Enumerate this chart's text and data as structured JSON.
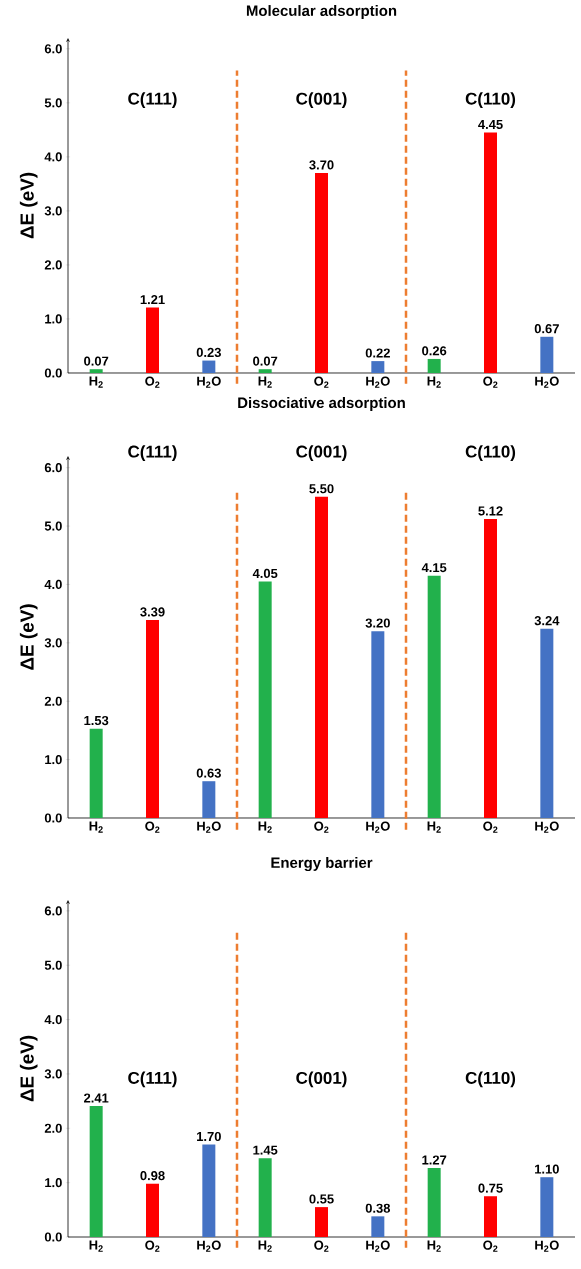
{
  "chart_data": [
    {
      "type": "bar",
      "title": "Molecular adsorption",
      "ylabel": "ΔE (eV)",
      "categories": [
        "H$_{2}$",
        "O$_{2}$",
        "H$_{2}$O",
        "H$_{2}$",
        "O$_{2}$",
        "H$_{2}$O",
        "H$_{2}$",
        "O$_{2}$",
        "H$_{2}$O"
      ],
      "values": [
        0.07,
        1.21,
        0.23,
        0.07,
        3.7,
        0.22,
        0.26,
        4.45,
        0.67
      ],
      "value_labels": [
        "0.07",
        "1.21",
        "0.23",
        "0.07",
        "3.70",
        "0.22",
        "0.26",
        "4.45",
        "0.67"
      ],
      "colors": [
        "#22b14c",
        "#ff0000",
        "#4472c4",
        "#22b14c",
        "#ff0000",
        "#4472c4",
        "#22b14c",
        "#ff0000",
        "#4472c4"
      ],
      "ylim": [
        0,
        6.2
      ],
      "yticks": [
        {
          "value": 0,
          "label": "0.0"
        },
        {
          "value": 1,
          "label": "1.0"
        },
        {
          "value": 2,
          "label": "2.0"
        },
        {
          "value": 3,
          "label": "3.0"
        },
        {
          "value": 4,
          "label": "4.0"
        },
        {
          "value": 5,
          "label": "5.0"
        },
        {
          "value": 6,
          "label": "6.0"
        }
      ],
      "annotations": [
        "C(111)",
        "C(001)",
        "C(110)"
      ]
    },
    {
      "type": "bar",
      "title": "Dissociative adsorption",
      "ylabel": "ΔE (eV)",
      "categories": [
        "H$_{2}$",
        "O$_{2}$",
        "H$_{2}$O",
        "H$_{2}$",
        "O$_{2}$",
        "H$_{2}$O",
        "H$_{2}$",
        "O$_{2}$",
        "H$_{2}$O"
      ],
      "values": [
        1.53,
        3.39,
        0.63,
        4.05,
        5.5,
        3.2,
        4.15,
        5.12,
        3.24
      ],
      "value_labels": [
        "1.53",
        "3.39",
        "0.63",
        "4.05",
        "5.50",
        "3.20",
        "4.15",
        "5.12",
        "3.24"
      ],
      "colors": [
        "#22b14c",
        "#ff0000",
        "#4472c4",
        "#22b14c",
        "#ff0000",
        "#4472c4",
        "#22b14c",
        "#ff0000",
        "#4472c4"
      ],
      "ylim": [
        0,
        6.2
      ],
      "yticks": [
        {
          "value": 0,
          "label": "0.0"
        },
        {
          "value": 1,
          "label": "1.0"
        },
        {
          "value": 2,
          "label": "2.0"
        },
        {
          "value": 3,
          "label": "3.0"
        },
        {
          "value": 4,
          "label": "4.0"
        },
        {
          "value": 5,
          "label": "5.0"
        },
        {
          "value": 6,
          "label": "6.0"
        }
      ],
      "annotations": [
        "C(111)",
        "C(001)",
        "C(110)"
      ]
    },
    {
      "type": "bar",
      "title": "Energy barrier",
      "ylabel": "ΔE (eV)",
      "categories": [
        "H$_{2}$",
        "O$_{2}$",
        "H$_{2}$O",
        "H$_{2}$",
        "O$_{2}$",
        "H$_{2}$O",
        "H$_{2}$",
        "O$_{2}$",
        "H$_{2}$O"
      ],
      "values": [
        2.41,
        0.98,
        1.7,
        1.45,
        0.55,
        0.38,
        1.27,
        0.75,
        1.1
      ],
      "value_labels": [
        "2.41",
        "0.98",
        "1.70",
        "1.45",
        "0.55",
        "0.38",
        "1.27",
        "0.75",
        "1.10"
      ],
      "colors": [
        "#22b14c",
        "#ff0000",
        "#4472c4",
        "#22b14c",
        "#ff0000",
        "#4472c4",
        "#22b14c",
        "#ff0000",
        "#4472c4"
      ],
      "ylim": [
        0,
        6.2
      ],
      "yticks": [
        {
          "value": 0,
          "label": "0.0"
        },
        {
          "value": 1,
          "label": "1.0"
        },
        {
          "value": 2,
          "label": "2.0"
        },
        {
          "value": 3,
          "label": "3.0"
        },
        {
          "value": 4,
          "label": "4.0"
        },
        {
          "value": 5,
          "label": "5.0"
        },
        {
          "value": 6,
          "label": "6.0"
        }
      ],
      "annotations": [
        "C(111)",
        "C(001)",
        "C(110)"
      ]
    }
  ]
}
